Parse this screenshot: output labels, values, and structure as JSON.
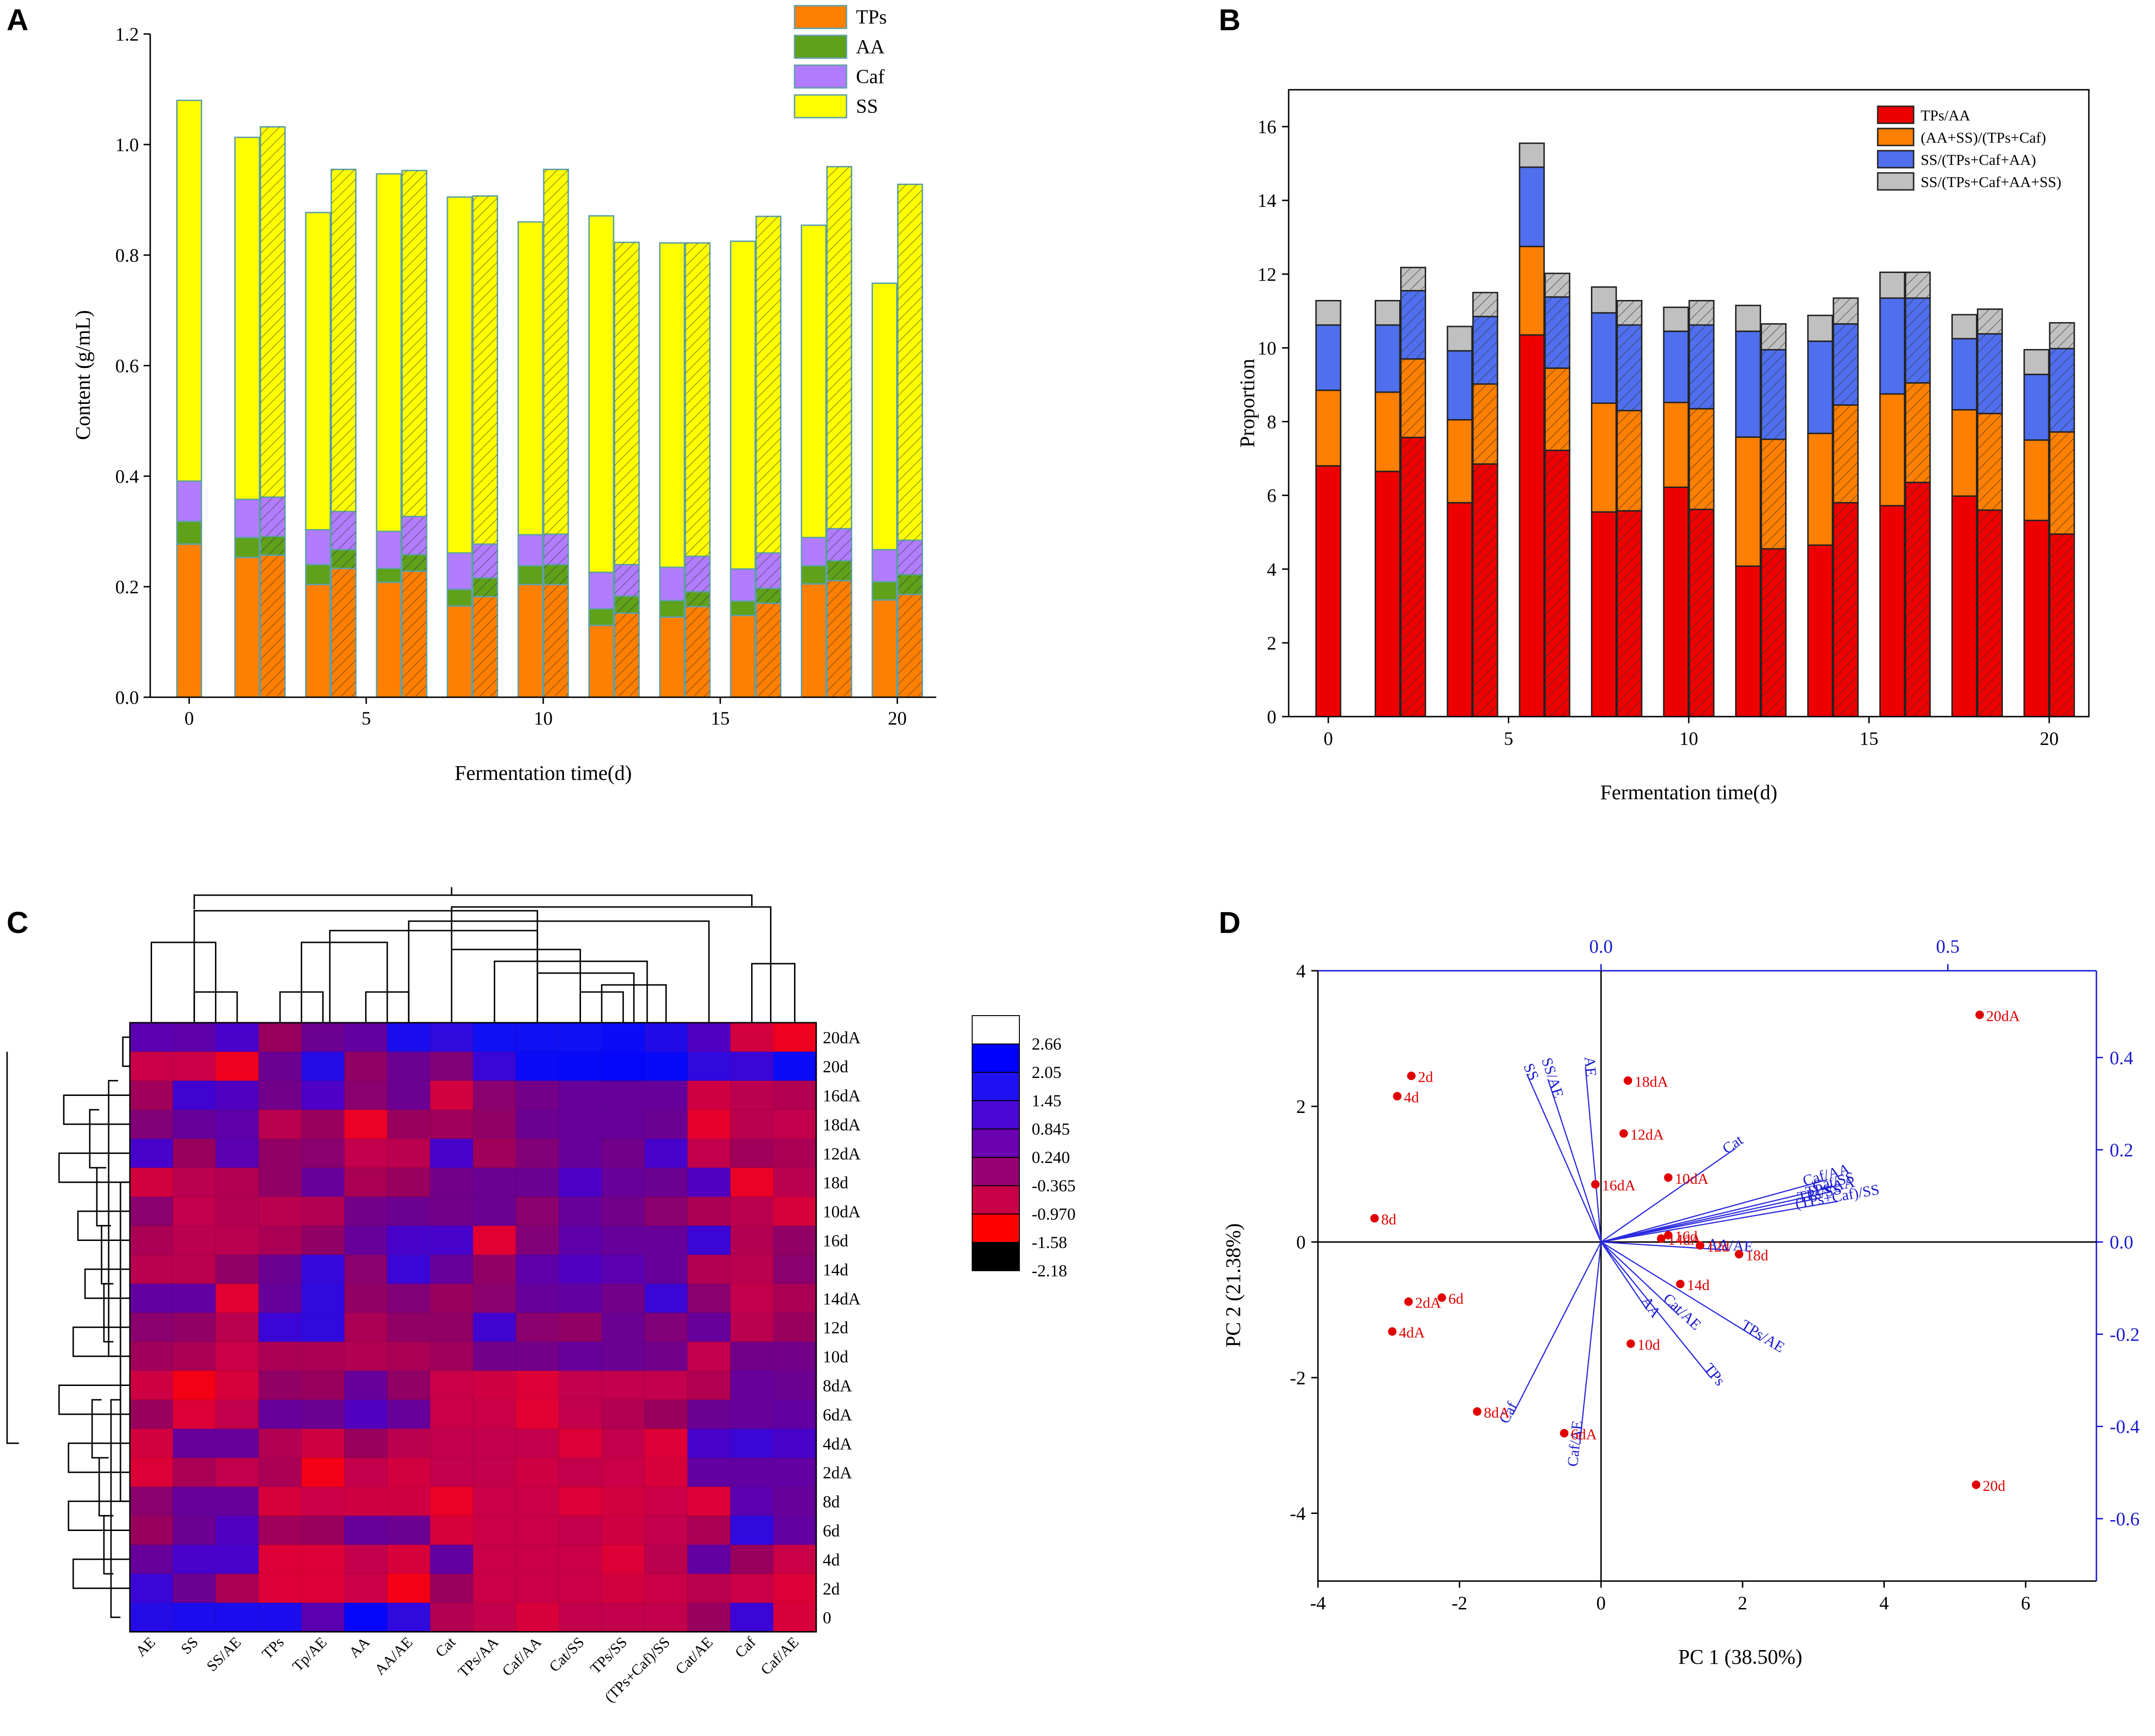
{
  "chart_data": [
    {
      "panel": "A",
      "type": "stacked-bar",
      "xlabel": "Fermentation time(d)",
      "ylabel": "Content (g/mL)",
      "ylim": [
        0,
        1.2
      ],
      "yticks": [
        "0.0",
        "0.2",
        "0.4",
        "0.6",
        "0.8",
        "1.0",
        "1.2"
      ],
      "xticks": [
        "0",
        "5",
        "10",
        "15",
        "20"
      ],
      "legend": [
        "TPs",
        "AA",
        "Caf",
        "SS"
      ],
      "colors": {
        "TPs": "#ff7f00",
        "AA": "#5fa118",
        "Caf": "#b27cff",
        "SS": "#ffff00",
        "edge": "#5fa0a8"
      },
      "bars": [
        {
          "day": 0,
          "hatched": false,
          "TPs": 0.277,
          "AA": 0.041,
          "Caf": 0.073,
          "total": 1.08
        },
        {
          "day": 2,
          "hatched": false,
          "TPs": 0.253,
          "AA": 0.036,
          "Caf": 0.069,
          "total": 1.013
        },
        {
          "day": 2,
          "hatched": true,
          "TPs": 0.257,
          "AA": 0.034,
          "Caf": 0.071,
          "total": 1.032
        },
        {
          "day": 4,
          "hatched": false,
          "TPs": 0.204,
          "AA": 0.036,
          "Caf": 0.063,
          "total": 0.877
        },
        {
          "day": 4,
          "hatched": true,
          "TPs": 0.233,
          "AA": 0.034,
          "Caf": 0.069,
          "total": 0.955
        },
        {
          "day": 6,
          "hatched": false,
          "TPs": 0.208,
          "AA": 0.025,
          "Caf": 0.067,
          "total": 0.947
        },
        {
          "day": 6,
          "hatched": true,
          "TPs": 0.228,
          "AA": 0.03,
          "Caf": 0.069,
          "total": 0.953
        },
        {
          "day": 8,
          "hatched": false,
          "TPs": 0.165,
          "AA": 0.03,
          "Caf": 0.066,
          "total": 0.905
        },
        {
          "day": 8,
          "hatched": true,
          "TPs": 0.182,
          "AA": 0.034,
          "Caf": 0.061,
          "total": 0.907
        },
        {
          "day": 10,
          "hatched": false,
          "TPs": 0.204,
          "AA": 0.034,
          "Caf": 0.056,
          "total": 0.86
        },
        {
          "day": 10,
          "hatched": true,
          "TPs": 0.204,
          "AA": 0.036,
          "Caf": 0.055,
          "total": 0.955
        },
        {
          "day": 12,
          "hatched": false,
          "TPs": 0.13,
          "AA": 0.03,
          "Caf": 0.066,
          "total": 0.871
        },
        {
          "day": 12,
          "hatched": true,
          "TPs": 0.152,
          "AA": 0.031,
          "Caf": 0.057,
          "total": 0.823
        },
        {
          "day": 14,
          "hatched": false,
          "TPs": 0.145,
          "AA": 0.03,
          "Caf": 0.06,
          "total": 0.822
        },
        {
          "day": 14,
          "hatched": true,
          "TPs": 0.164,
          "AA": 0.027,
          "Caf": 0.064,
          "total": 0.822
        },
        {
          "day": 16,
          "hatched": false,
          "TPs": 0.148,
          "AA": 0.026,
          "Caf": 0.058,
          "total": 0.825
        },
        {
          "day": 16,
          "hatched": true,
          "TPs": 0.17,
          "AA": 0.027,
          "Caf": 0.064,
          "total": 0.87
        },
        {
          "day": 18,
          "hatched": false,
          "TPs": 0.205,
          "AA": 0.033,
          "Caf": 0.051,
          "total": 0.854
        },
        {
          "day": 18,
          "hatched": true,
          "TPs": 0.211,
          "AA": 0.036,
          "Caf": 0.058,
          "total": 0.96
        },
        {
          "day": 20,
          "hatched": false,
          "TPs": 0.176,
          "AA": 0.033,
          "Caf": 0.058,
          "total": 0.749
        },
        {
          "day": 20,
          "hatched": true,
          "TPs": 0.186,
          "AA": 0.036,
          "Caf": 0.062,
          "total": 0.928
        }
      ]
    },
    {
      "panel": "B",
      "type": "stacked-bar",
      "xlabel": "Fermentation time(d)",
      "ylabel": "Proportion",
      "ylim": [
        0,
        17
      ],
      "yticks": [
        "0",
        "2",
        "4",
        "6",
        "8",
        "10",
        "12",
        "14",
        "16"
      ],
      "xticks": [
        "0",
        "5",
        "10",
        "15",
        "20"
      ],
      "legend": [
        "TPs/AA",
        "(AA+SS)/(TPs+Caf)",
        "SS/(TPs+Caf+AA)",
        "SS/(TPs+Caf+AA+SS)"
      ],
      "colors": {
        "s1": "#ee0000",
        "s2": "#ff7f00",
        "s3": "#4f6fee",
        "s4": "#c0c0c0"
      },
      "bars": [
        {
          "day": 0,
          "hatched": false,
          "c": [
            6.8,
            8.85,
            10.62,
            11.28
          ]
        },
        {
          "day": 2,
          "hatched": false,
          "c": [
            6.65,
            8.8,
            10.62,
            11.28
          ]
        },
        {
          "day": 2,
          "hatched": true,
          "c": [
            7.57,
            9.7,
            11.55,
            12.18
          ]
        },
        {
          "day": 4,
          "hatched": false,
          "c": [
            5.8,
            8.05,
            9.92,
            10.58
          ]
        },
        {
          "day": 4,
          "hatched": true,
          "c": [
            6.85,
            9.02,
            10.85,
            11.5
          ]
        },
        {
          "day": 6,
          "hatched": false,
          "c": [
            10.35,
            12.75,
            14.9,
            15.55
          ]
        },
        {
          "day": 6,
          "hatched": true,
          "c": [
            7.22,
            9.45,
            11.38,
            12.02
          ]
        },
        {
          "day": 8,
          "hatched": false,
          "c": [
            5.55,
            8.5,
            10.95,
            11.65
          ]
        },
        {
          "day": 8,
          "hatched": true,
          "c": [
            5.58,
            8.3,
            10.62,
            11.28
          ]
        },
        {
          "day": 10,
          "hatched": false,
          "c": [
            6.22,
            8.52,
            10.45,
            11.1
          ]
        },
        {
          "day": 10,
          "hatched": true,
          "c": [
            5.62,
            8.35,
            10.62,
            11.28
          ]
        },
        {
          "day": 12,
          "hatched": false,
          "c": [
            4.08,
            7.58,
            10.45,
            11.15
          ]
        },
        {
          "day": 12,
          "hatched": true,
          "c": [
            4.55,
            7.52,
            9.95,
            10.65
          ]
        },
        {
          "day": 14,
          "hatched": false,
          "c": [
            4.65,
            7.68,
            10.18,
            10.88
          ]
        },
        {
          "day": 14,
          "hatched": true,
          "c": [
            5.8,
            8.45,
            10.65,
            11.35
          ]
        },
        {
          "day": 16,
          "hatched": false,
          "c": [
            5.72,
            8.75,
            11.35,
            12.05
          ]
        },
        {
          "day": 16,
          "hatched": true,
          "c": [
            6.35,
            9.05,
            11.35,
            12.05
          ]
        },
        {
          "day": 18,
          "hatched": false,
          "c": [
            5.98,
            8.32,
            10.25,
            10.9
          ]
        },
        {
          "day": 18,
          "hatched": true,
          "c": [
            5.6,
            8.22,
            10.38,
            11.05
          ]
        },
        {
          "day": 20,
          "hatched": false,
          "c": [
            5.32,
            7.5,
            9.28,
            9.95
          ]
        },
        {
          "day": 20,
          "hatched": true,
          "c": [
            4.95,
            7.72,
            9.98,
            10.68
          ]
        }
      ]
    },
    {
      "panel": "C",
      "type": "heatmap",
      "rows": [
        "20dA",
        "20d",
        "16dA",
        "18dA",
        "12dA",
        "18d",
        "10dA",
        "16d",
        "14d",
        "14dA",
        "12d",
        "10d",
        "8dA",
        "6dA",
        "4dA",
        "2dA",
        "8d",
        "6d",
        "4d",
        "2d",
        "0"
      ],
      "columns": [
        "AE",
        "SS",
        "SS/AE",
        "TPs",
        "Tp/AE",
        "AA",
        "AA/AE",
        "Cat",
        "TPs/AA",
        "Caf/AA",
        "Cat/SS",
        "TPs/SS",
        "(TPs+Caf)/SS",
        "Cat/AE",
        "Caf",
        "Caf/AE"
      ],
      "colorbar": [
        "2.66",
        "2.05",
        "1.45",
        "0.845",
        "0.240",
        "-0.365",
        "-0.970",
        "-1.58",
        "-2.18"
      ],
      "values": [
        [
          0.6,
          0.5,
          1.0,
          -0.4,
          0.2,
          0.4,
          1.8,
          1.4,
          2.0,
          2.0,
          2.0,
          2.2,
          1.7,
          0.8,
          -1.2,
          -1.8
        ],
        [
          -1.0,
          -1.0,
          -1.8,
          0.2,
          1.6,
          -0.3,
          0.2,
          -0.1,
          1.2,
          2.2,
          2.3,
          2.4,
          2.3,
          1.4,
          1.2,
          2.2
        ],
        [
          -0.5,
          1.1,
          0.8,
          0.1,
          0.9,
          -0.2,
          0.2,
          -1.2,
          -0.2,
          0.1,
          0.3,
          0.3,
          0.3,
          -1.1,
          -0.8,
          -0.7
        ],
        [
          -0.1,
          0.3,
          0.5,
          -0.8,
          -0.4,
          -1.7,
          -0.4,
          -0.5,
          -0.3,
          0.2,
          0.3,
          0.3,
          0.2,
          -1.6,
          -0.8,
          -0.9
        ],
        [
          1.0,
          -0.4,
          0.6,
          -0.3,
          -0.2,
          -0.9,
          -0.8,
          1.0,
          -0.5,
          -0.1,
          0.3,
          0.1,
          1.0,
          -0.9,
          -0.5,
          -0.6
        ],
        [
          -1.2,
          -0.8,
          -0.7,
          -0.3,
          0.3,
          -0.6,
          -0.4,
          0.1,
          0.2,
          0.2,
          0.9,
          0.3,
          0.2,
          0.8,
          -1.7,
          -0.8
        ],
        [
          -0.2,
          -0.9,
          -0.7,
          -0.8,
          -0.7,
          0.1,
          0.2,
          0.1,
          0.2,
          -0.2,
          0.3,
          0.1,
          -0.2,
          -0.6,
          -0.8,
          -1.3
        ],
        [
          -0.6,
          -0.8,
          -0.8,
          -0.6,
          -0.3,
          0.3,
          1.0,
          1.0,
          -1.5,
          -0.1,
          0.5,
          0.3,
          0.3,
          1.2,
          -0.7,
          -0.3
        ],
        [
          -0.8,
          -0.8,
          -0.3,
          0.2,
          1.3,
          -0.2,
          1.2,
          0.3,
          -0.3,
          0.5,
          0.8,
          0.6,
          0.3,
          -0.7,
          -0.8,
          -0.2
        ],
        [
          0.4,
          0.4,
          -1.5,
          0.3,
          1.4,
          -0.3,
          -0.1,
          -0.4,
          -0.2,
          0.3,
          0.4,
          0.1,
          1.2,
          -0.2,
          -0.9,
          -0.6
        ],
        [
          -0.2,
          -0.3,
          -0.8,
          1.2,
          1.4,
          -0.6,
          -0.3,
          -0.3,
          1.1,
          -0.2,
          -0.3,
          0.2,
          -0.1,
          0.3,
          -0.8,
          -0.4
        ],
        [
          -0.5,
          -0.6,
          -1.0,
          -0.6,
          -0.6,
          -0.7,
          -0.6,
          -0.5,
          0.1,
          0.1,
          0.3,
          0.2,
          0.1,
          -0.9,
          0.1,
          0.1
        ],
        [
          -1.1,
          -1.9,
          -1.3,
          -0.3,
          -0.4,
          0.3,
          -0.3,
          -1.0,
          -1.1,
          -1.4,
          -0.9,
          -0.9,
          -0.9,
          -0.7,
          0.3,
          0.2
        ],
        [
          -0.4,
          -1.4,
          -0.9,
          0.3,
          0.2,
          0.8,
          0.3,
          -1.0,
          -1.0,
          -1.5,
          -0.9,
          -0.7,
          -0.4,
          0.2,
          0.3,
          0.4
        ],
        [
          -1.2,
          0.3,
          0.3,
          -0.7,
          -1.1,
          -0.4,
          -0.8,
          -0.9,
          -0.9,
          -0.9,
          -1.4,
          -0.9,
          -1.4,
          1.0,
          1.2,
          1.0
        ],
        [
          -1.4,
          -0.6,
          -0.9,
          -0.6,
          -1.9,
          -0.9,
          -1.2,
          -0.9,
          -0.9,
          -1.1,
          -0.9,
          -1.0,
          -1.3,
          0.4,
          0.4,
          0.4
        ],
        [
          -0.2,
          0.3,
          0.3,
          -1.3,
          -1.0,
          -1.1,
          -1.1,
          -1.7,
          -1.0,
          -1.0,
          -1.4,
          -1.2,
          -1.0,
          -1.4,
          0.6,
          0.3
        ],
        [
          -0.4,
          0.2,
          0.8,
          -0.5,
          -0.4,
          0.3,
          0.2,
          -1.3,
          -1.0,
          -1.0,
          -0.9,
          -1.1,
          -0.9,
          -0.6,
          1.4,
          0.4
        ],
        [
          0.3,
          1.0,
          1.0,
          -1.4,
          -1.4,
          -0.9,
          -1.3,
          0.4,
          -1.0,
          -1.0,
          -1.0,
          -1.4,
          -0.8,
          0.4,
          -0.4,
          -1.0
        ],
        [
          1.2,
          0.2,
          -0.6,
          -1.4,
          -1.4,
          -1.0,
          -1.9,
          -0.4,
          -1.0,
          -1.0,
          -1.0,
          -1.2,
          -1.0,
          -0.8,
          -1.0,
          -1.4
        ],
        [
          1.6,
          1.8,
          1.8,
          1.8,
          0.6,
          2.4,
          1.4,
          -0.7,
          -0.9,
          -1.3,
          -0.9,
          -0.9,
          -0.9,
          -0.4,
          1.2,
          -1.3
        ]
      ]
    },
    {
      "panel": "D",
      "type": "biplot",
      "xlabel": "PC 1 (38.50%)",
      "ylabel": "PC 2 (21.38%)",
      "xlim": [
        -4,
        7
      ],
      "ylim": [
        -5,
        4
      ],
      "xticks": [
        "-4",
        "-2",
        "0",
        "2",
        "4",
        "6"
      ],
      "yticks": [
        "-4",
        "-2",
        "0",
        "2",
        "4"
      ],
      "top_ticks": [
        "0.0",
        "0.5"
      ],
      "right_ticks": [
        "0.4",
        "0.2",
        "0.0",
        "-0.2",
        "-0.4",
        "-0.6"
      ],
      "scores": [
        {
          "label": "20dA",
          "x": 5.35,
          "y": 3.35
        },
        {
          "label": "2d",
          "x": -2.68,
          "y": 2.45
        },
        {
          "label": "4d",
          "x": -2.88,
          "y": 2.15
        },
        {
          "label": "18dA",
          "x": 0.38,
          "y": 2.38
        },
        {
          "label": "12dA",
          "x": 0.32,
          "y": 1.6
        },
        {
          "label": "10dA",
          "x": 0.95,
          "y": 0.95
        },
        {
          "label": "16dA",
          "x": -0.08,
          "y": 0.85
        },
        {
          "label": "8d",
          "x": -3.2,
          "y": 0.35
        },
        {
          "label": "14dA",
          "x": 0.85,
          "y": 0.05
        },
        {
          "label": "16d",
          "x": 0.95,
          "y": 0.1
        },
        {
          "label": "12d",
          "x": 1.4,
          "y": -0.05
        },
        {
          "label": "18d",
          "x": 1.95,
          "y": -0.18
        },
        {
          "label": "14d",
          "x": 1.12,
          "y": -0.62
        },
        {
          "label": "2dA",
          "x": -2.72,
          "y": -0.88
        },
        {
          "label": "6d",
          "x": -2.25,
          "y": -0.82
        },
        {
          "label": "4dA",
          "x": -2.95,
          "y": -1.32
        },
        {
          "label": "10d",
          "x": 0.42,
          "y": -1.5
        },
        {
          "label": "8dA",
          "x": -1.75,
          "y": -2.5
        },
        {
          "label": "6dA",
          "x": -0.52,
          "y": -2.82
        },
        {
          "label": "20d",
          "x": 5.3,
          "y": -3.58
        }
      ],
      "loadings": [
        {
          "label": "SS",
          "x": -1.05,
          "y": 2.48
        },
        {
          "label": "SS/AE",
          "x": -0.75,
          "y": 2.4
        },
        {
          "label": "AE",
          "x": -0.22,
          "y": 2.58
        },
        {
          "label": "Cat",
          "x": 1.9,
          "y": 1.38
        },
        {
          "label": "Caf/AA",
          "x": 3.2,
          "y": 0.92
        },
        {
          "label": "Cat/SS",
          "x": 3.3,
          "y": 0.82
        },
        {
          "label": "TPs/AA",
          "x": 3.25,
          "y": 0.74
        },
        {
          "label": "(TPs+Caf)/SS",
          "x": 3.35,
          "y": 0.6
        },
        {
          "label": "TPs/SS",
          "x": 3.1,
          "y": 0.65
        },
        {
          "label": "AA/AE",
          "x": 1.82,
          "y": -0.12
        },
        {
          "label": "AA",
          "x": 0.65,
          "y": -1.0
        },
        {
          "label": "Cat/AE",
          "x": 1.1,
          "y": -1.08
        },
        {
          "label": "TPs/AE",
          "x": 2.25,
          "y": -1.45
        },
        {
          "label": "TPs",
          "x": 1.55,
          "y": -2.0
        },
        {
          "label": "Caf",
          "x": -1.25,
          "y": -2.55
        },
        {
          "label": "Caf/AE",
          "x": -0.3,
          "y": -2.98
        }
      ]
    }
  ],
  "panel_letters": {
    "a": "A",
    "b": "B",
    "c": "C",
    "d": "D"
  }
}
